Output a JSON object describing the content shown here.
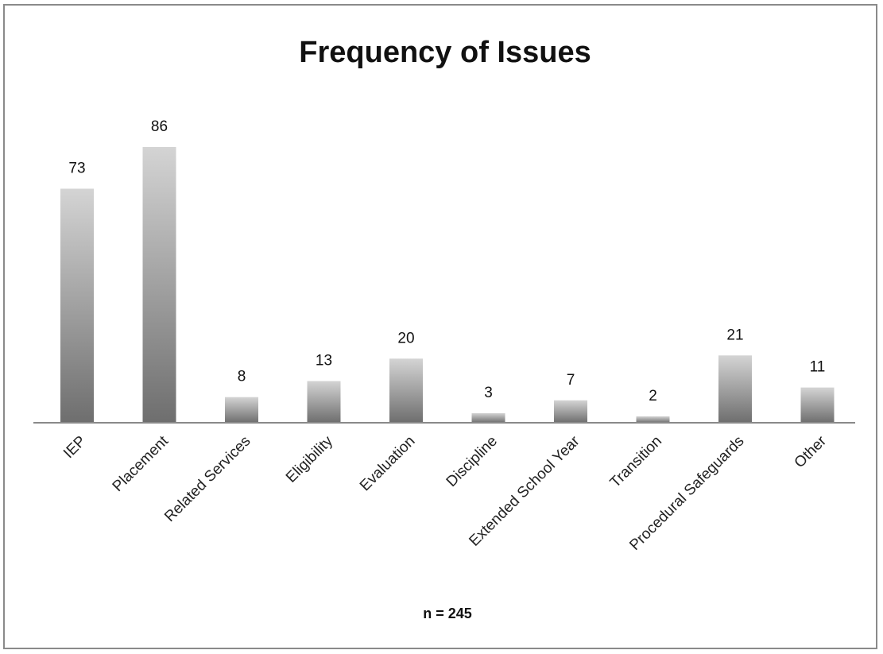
{
  "chart_data": {
    "type": "bar",
    "title": "Frequency of Issues",
    "categories": [
      "IEP",
      "Placement",
      "Related Services",
      "Eligibility",
      "Evaluation",
      "Discipline",
      "Extended School Year",
      "Transition",
      "Procedural Safeguards",
      "Other"
    ],
    "values": [
      73,
      86,
      8,
      13,
      20,
      3,
      7,
      2,
      21,
      11
    ],
    "xlabel": "",
    "ylabel": "",
    "ylim": [
      0,
      86
    ],
    "grid": false,
    "legend": "none",
    "data_labels": true,
    "footnote": "n = 245",
    "bar_gradient": [
      "#d4d4d4",
      "#6e6e6e"
    ],
    "axis_color": "#8a8a8a"
  }
}
